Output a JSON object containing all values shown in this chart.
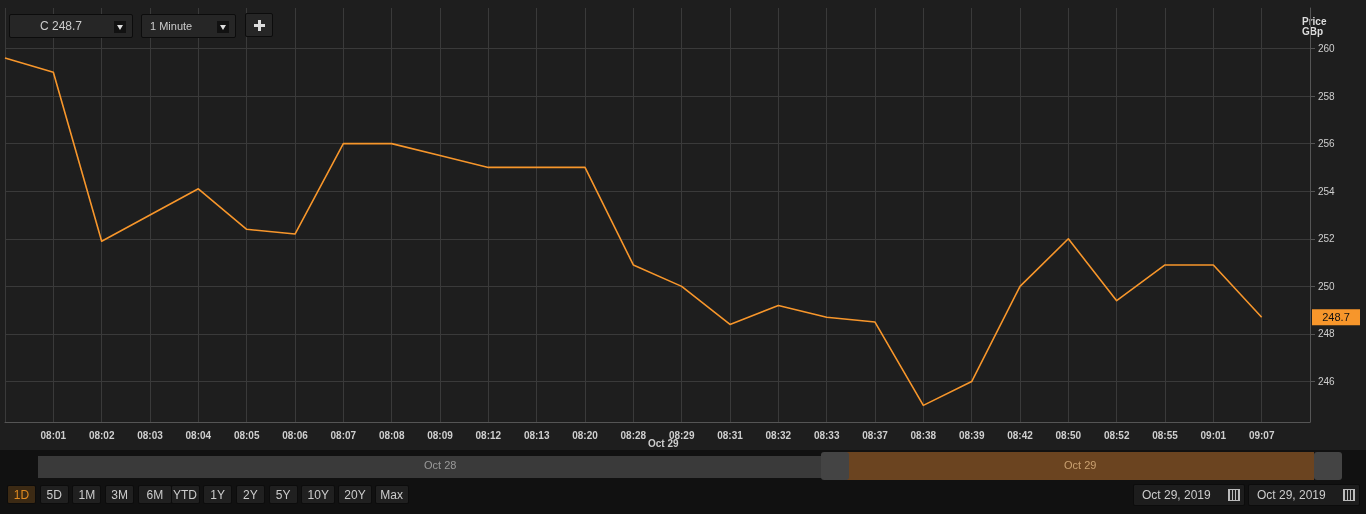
{
  "chart_data": {
    "type": "line",
    "ylabel": "Price\nGBp",
    "categories": [
      null,
      "08:01",
      "08:02",
      "08:03",
      "08:04",
      "08:05",
      "08:06",
      "08:07",
      "08:08",
      "08:09",
      "08:12",
      "08:13",
      "08:20",
      "08:28",
      "08:29",
      "08:31",
      "08:32",
      "08:33",
      "08:37",
      "08:38",
      "08:39",
      "08:42",
      "08:50",
      "08:52",
      "08:55",
      "09:01",
      "09:07",
      null
    ],
    "series": [
      {
        "color": "#f7962b",
        "values": [
          259.6,
          259.0,
          251.9,
          253.0,
          254.1,
          252.4,
          252.2,
          256.0,
          256.0,
          255.5,
          255.0,
          255.0,
          255.0,
          250.9,
          250.0,
          248.4,
          249.2,
          248.7,
          248.5,
          245.0,
          246.0,
          250.0,
          252.0,
          249.4,
          250.9,
          250.9,
          248.7,
          null
        ]
      }
    ],
    "ylim": [
      244.3,
      261.7
    ],
    "yticks": [
      246,
      248,
      250,
      252,
      254,
      256,
      258,
      260
    ],
    "grid": true,
    "marker": "none",
    "line_style": "solid",
    "annotations": [
      "C 248.7",
      "1 Minute",
      "Oct 29",
      "Oct 28",
      "Oct 29",
      "1D",
      "5D",
      "1M",
      "3M",
      "6M",
      "YTD",
      "1Y",
      "2Y",
      "5Y",
      "10Y",
      "20Y",
      "Max",
      "Oct 29, 2019",
      "Oct 29, 2019",
      "248.7"
    ]
  }
}
